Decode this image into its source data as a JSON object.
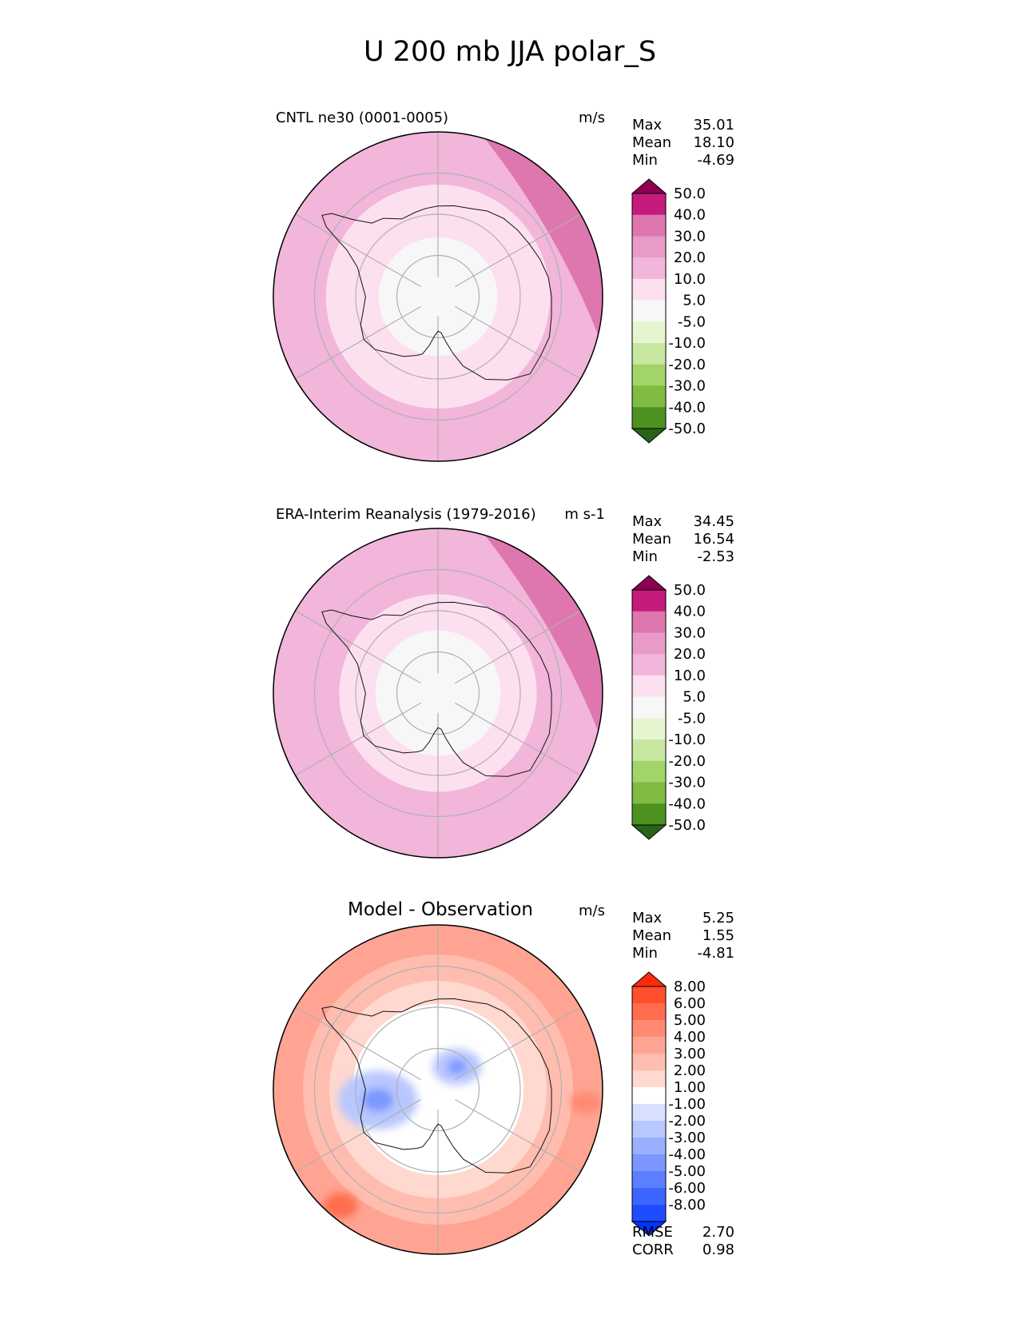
{
  "chart_data": {
    "type": "polar_contour",
    "title": "U 200 mb JJA polar_S",
    "projection": "south-polar stereographic",
    "panels": [
      {
        "id": "model",
        "title": "CNTL ne30 (0001-0005)",
        "title_size": "small",
        "units": "m/s",
        "stats": [
          {
            "label": "Max",
            "value": "35.01"
          },
          {
            "label": "Mean",
            "value": "18.10"
          },
          {
            "label": "Min",
            "value": "-4.69"
          }
        ],
        "colorbar": {
          "extend": "both",
          "tick_labels": [
            "50.0",
            "40.0",
            "30.0",
            "20.0",
            "10.0",
            "5.0",
            "-5.0",
            "-10.0",
            "-20.0",
            "-30.0",
            "-40.0",
            "-50.0"
          ],
          "colors": [
            "#8e0152",
            "#c51b7d",
            "#de77ae",
            "#e99bc8",
            "#f1b6da",
            "#fde0ef",
            "#f7f7f7",
            "#e6f5d0",
            "#c8e8a2",
            "#a2d46a",
            "#7fbc41",
            "#4d9221",
            "#276419"
          ]
        },
        "field_bands": [
          {
            "value": 15,
            "r_frac": 1.0
          },
          {
            "value": 8,
            "r_frac": 0.68
          },
          {
            "value": 2,
            "r_frac": 0.36
          }
        ],
        "jet_core_value": 32
      },
      {
        "id": "obs",
        "title": "ERA-Interim Reanalysis (1979-2016)",
        "title_size": "small",
        "units": "m s-1",
        "stats": [
          {
            "label": "Max",
            "value": "34.45"
          },
          {
            "label": "Mean",
            "value": "16.54"
          },
          {
            "label": "Min",
            "value": "-2.53"
          }
        ],
        "colorbar": {
          "extend": "both",
          "tick_labels": [
            "50.0",
            "40.0",
            "30.0",
            "20.0",
            "10.0",
            "5.0",
            "-5.0",
            "-10.0",
            "-20.0",
            "-30.0",
            "-40.0",
            "-50.0"
          ],
          "colors": [
            "#8e0152",
            "#c51b7d",
            "#de77ae",
            "#e99bc8",
            "#f1b6da",
            "#fde0ef",
            "#f7f7f7",
            "#e6f5d0",
            "#c8e8a2",
            "#a2d46a",
            "#7fbc41",
            "#4d9221",
            "#276419"
          ]
        },
        "field_bands": [
          {
            "value": 15,
            "r_frac": 1.0
          },
          {
            "value": 12,
            "r_frac": 0.78
          },
          {
            "value": 8,
            "r_frac": 0.6
          },
          {
            "value": 2,
            "r_frac": 0.38
          }
        ],
        "jet_core_value": 32
      },
      {
        "id": "diff",
        "title": "Model - Observation",
        "title_size": "large",
        "units": "m/s",
        "stats": [
          {
            "label": "Max",
            "value": "5.25"
          },
          {
            "label": "Mean",
            "value": "1.55"
          },
          {
            "label": "Min",
            "value": "-4.81"
          }
        ],
        "colorbar": {
          "extend": "both",
          "tick_labels": [
            "8.00",
            "6.00",
            "5.00",
            "4.00",
            "3.00",
            "2.00",
            "1.00",
            "-1.00",
            "-2.00",
            "-3.00",
            "-4.00",
            "-5.00",
            "-6.00",
            "-8.00"
          ],
          "colors": [
            "#ff2a0a",
            "#ff4f2b",
            "#ff6d4e",
            "#ff8a72",
            "#ffa493",
            "#ffbdb0",
            "#ffd8cf",
            "#ffffff",
            "#d8e0ff",
            "#b9c7ff",
            "#9aafff",
            "#7b97ff",
            "#5c7fff",
            "#3d66ff",
            "#1e4dff",
            "#0033ff"
          ]
        },
        "field_bands": [
          {
            "value": 3.5,
            "r_frac": 1.0
          },
          {
            "value": 2.5,
            "r_frac": 0.82
          },
          {
            "value": 1.5,
            "r_frac": 0.66
          },
          {
            "value": 0,
            "r_frac": 0.52
          }
        ],
        "anomalies": [
          {
            "value": -2.5,
            "lon": -100,
            "r_frac": 0.37,
            "size_frac": 0.21
          },
          {
            "value": -4.5,
            "lon": -100,
            "r_frac": 0.37,
            "size_frac": 0.08
          },
          {
            "value": -2.5,
            "lon": 40,
            "r_frac": 0.18,
            "size_frac": 0.13
          },
          {
            "value": -4.5,
            "lon": 40,
            "r_frac": 0.18,
            "size_frac": 0.05
          },
          {
            "value": 4.5,
            "lon": 95,
            "r_frac": 0.9,
            "size_frac": 0.08
          },
          {
            "value": 5.5,
            "lon": -140,
            "r_frac": 0.92,
            "size_frac": 0.09
          }
        ],
        "summary": [
          {
            "label": "RMSE",
            "value": "2.70"
          },
          {
            "label": "CORR",
            "value": "0.98"
          }
        ]
      }
    ]
  }
}
